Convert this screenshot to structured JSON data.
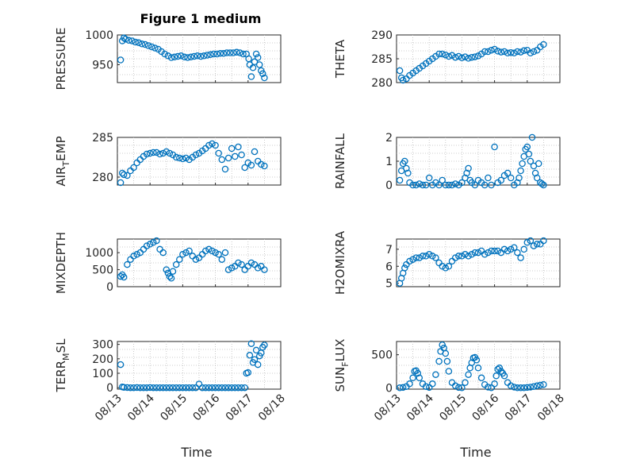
{
  "figure": {
    "title": "Figure 1 medium"
  },
  "chart_data": [
    {
      "type": "scatter",
      "ylabel": "PRESSURE",
      "xlabel": "",
      "xlim": [
        0,
        5
      ],
      "ylim": [
        920,
        1000
      ],
      "yticks": [
        950,
        1000
      ],
      "xticks": [
        0,
        1,
        2,
        3,
        4,
        5
      ],
      "xticklabels": [],
      "grid": "on",
      "x": [
        0.1,
        0.15,
        0.2,
        0.25,
        0.35,
        0.45,
        0.55,
        0.65,
        0.75,
        0.85,
        0.95,
        1.05,
        1.15,
        1.25,
        1.35,
        1.45,
        1.55,
        1.65,
        1.75,
        1.85,
        1.95,
        2.05,
        2.15,
        2.25,
        2.35,
        2.45,
        2.55,
        2.65,
        2.75,
        2.85,
        2.95,
        3.05,
        3.15,
        3.25,
        3.35,
        3.45,
        3.55,
        3.65,
        3.75,
        3.85,
        3.95,
        4.02,
        4.05,
        4.1,
        4.15,
        4.2,
        4.25,
        4.3,
        4.35,
        4.4,
        4.45,
        4.5
      ],
      "y": [
        958,
        990,
        995,
        993,
        991,
        990,
        988,
        987,
        985,
        984,
        982,
        980,
        978,
        976,
        972,
        968,
        965,
        962,
        963,
        964,
        965,
        963,
        962,
        963,
        964,
        965,
        964,
        965,
        966,
        967,
        968,
        968,
        969,
        969,
        970,
        970,
        970,
        971,
        970,
        968,
        968,
        960,
        950,
        930,
        945,
        955,
        968,
        962,
        950,
        940,
        935,
        928
      ]
    },
    {
      "type": "scatter",
      "ylabel": "THETA",
      "xlabel": "",
      "xlim": [
        0,
        5
      ],
      "ylim": [
        280,
        290
      ],
      "yticks": [
        280,
        285,
        290
      ],
      "xticks": [
        0,
        1,
        2,
        3,
        4,
        5
      ],
      "xticklabels": [],
      "grid": "on",
      "x": [
        0.1,
        0.15,
        0.2,
        0.3,
        0.4,
        0.5,
        0.6,
        0.7,
        0.8,
        0.9,
        1.0,
        1.1,
        1.2,
        1.3,
        1.4,
        1.5,
        1.6,
        1.7,
        1.8,
        1.9,
        2.0,
        2.1,
        2.2,
        2.3,
        2.4,
        2.5,
        2.6,
        2.7,
        2.8,
        2.9,
        3.0,
        3.1,
        3.2,
        3.3,
        3.4,
        3.5,
        3.6,
        3.7,
        3.8,
        3.9,
        4.0,
        4.1,
        4.2,
        4.3,
        4.4,
        4.5
      ],
      "y": [
        282.5,
        281,
        280.5,
        280.8,
        281.5,
        282,
        282.5,
        283,
        283.5,
        284,
        284.5,
        285,
        285.5,
        286,
        286,
        285.8,
        285.5,
        285.7,
        285.3,
        285.5,
        285.2,
        285.4,
        285.1,
        285.3,
        285.4,
        285.6,
        286,
        286.5,
        286.5,
        286.8,
        287,
        286.6,
        286.4,
        286.5,
        286.2,
        286.3,
        286.2,
        286.5,
        286.4,
        286.7,
        286.8,
        286.2,
        286.5,
        286.8,
        287.5,
        288
      ]
    },
    {
      "type": "scatter",
      "ylabel": "AIR_TEMP",
      "xlabel": "",
      "xlim": [
        0,
        5
      ],
      "ylim": [
        279,
        285
      ],
      "yticks": [
        280,
        285
      ],
      "xticks": [
        0,
        1,
        2,
        3,
        4,
        5
      ],
      "xticklabels": [],
      "grid": "on",
      "x": [
        0.1,
        0.15,
        0.2,
        0.3,
        0.4,
        0.5,
        0.6,
        0.7,
        0.8,
        0.9,
        1.0,
        1.1,
        1.2,
        1.3,
        1.4,
        1.5,
        1.6,
        1.7,
        1.8,
        1.9,
        2.0,
        2.1,
        2.2,
        2.3,
        2.4,
        2.5,
        2.6,
        2.7,
        2.8,
        2.9,
        3.0,
        3.1,
        3.2,
        3.3,
        3.4,
        3.5,
        3.6,
        3.7,
        3.8,
        3.9,
        4.0,
        4.1,
        4.2,
        4.3,
        4.4,
        4.5
      ],
      "y": [
        279.3,
        280.5,
        280.3,
        280.2,
        280.8,
        281.2,
        281.8,
        282.2,
        282.6,
        282.9,
        283,
        283.1,
        283.1,
        282.9,
        283,
        283.2,
        283,
        282.8,
        282.5,
        282.4,
        282.3,
        282.4,
        282.2,
        282.5,
        282.8,
        283,
        283.3,
        283.6,
        284,
        284.2,
        284,
        283,
        282.2,
        281,
        282.4,
        283.6,
        282.6,
        283.8,
        282.8,
        281.2,
        281.8,
        281.5,
        283.2,
        282,
        281.6,
        281.4
      ]
    },
    {
      "type": "scatter",
      "ylabel": "RAINFALL",
      "xlabel": "",
      "xlim": [
        0,
        5
      ],
      "ylim": [
        0,
        2
      ],
      "yticks": [
        0,
        1,
        2
      ],
      "xticks": [
        0,
        1,
        2,
        3,
        4,
        5
      ],
      "xticklabels": [],
      "grid": "on",
      "x": [
        0.1,
        0.15,
        0.2,
        0.25,
        0.3,
        0.35,
        0.4,
        0.5,
        0.6,
        0.7,
        0.8,
        0.9,
        1.0,
        1.1,
        1.2,
        1.3,
        1.4,
        1.5,
        1.6,
        1.7,
        1.8,
        1.9,
        2.0,
        2.1,
        2.15,
        2.2,
        2.25,
        2.3,
        2.4,
        2.5,
        2.6,
        2.7,
        2.8,
        2.9,
        3.0,
        3.1,
        3.2,
        3.3,
        3.4,
        3.5,
        3.6,
        3.7,
        3.75,
        3.8,
        3.85,
        3.9,
        3.95,
        4.0,
        4.05,
        4.1,
        4.15,
        4.2,
        4.25,
        4.3,
        4.35,
        4.4,
        4.45,
        4.5
      ],
      "y": [
        0.2,
        0.6,
        0.9,
        1.0,
        0.7,
        0.5,
        0.1,
        0,
        0,
        0.05,
        0,
        0,
        0.3,
        0,
        0.1,
        0,
        0.2,
        0,
        0,
        0,
        0.05,
        0,
        0.1,
        0.3,
        0.5,
        0.7,
        0.2,
        0.1,
        0,
        0.2,
        0.1,
        0,
        0.3,
        0,
        1.6,
        0.1,
        0.2,
        0.4,
        0.5,
        0.3,
        0,
        0.1,
        0.3,
        0.6,
        0.9,
        1.2,
        1.5,
        1.6,
        1.3,
        1.0,
        2.0,
        0.8,
        0.5,
        0.3,
        0.9,
        0.1,
        0.05,
        0
      ]
    },
    {
      "type": "scatter",
      "ylabel": "MIXDEPTH",
      "xlabel": "",
      "xlim": [
        0,
        5
      ],
      "ylim": [
        0,
        1400
      ],
      "yticks": [
        0,
        500,
        1000
      ],
      "xticks": [
        0,
        1,
        2,
        3,
        4,
        5
      ],
      "xticklabels": [],
      "grid": "on",
      "x": [
        0.1,
        0.15,
        0.2,
        0.3,
        0.4,
        0.5,
        0.6,
        0.7,
        0.8,
        0.9,
        1.0,
        1.1,
        1.2,
        1.3,
        1.4,
        1.5,
        1.55,
        1.6,
        1.65,
        1.7,
        1.8,
        1.9,
        2.0,
        2.1,
        2.2,
        2.3,
        2.4,
        2.5,
        2.6,
        2.7,
        2.8,
        2.9,
        3.0,
        3.1,
        3.2,
        3.3,
        3.4,
        3.5,
        3.6,
        3.7,
        3.8,
        3.9,
        4.0,
        4.1,
        4.2,
        4.3,
        4.4,
        4.5
      ],
      "y": [
        300,
        350,
        280,
        650,
        800,
        900,
        950,
        1000,
        1100,
        1200,
        1250,
        1300,
        1350,
        1100,
        1000,
        500,
        400,
        300,
        250,
        450,
        650,
        800,
        950,
        1000,
        1050,
        900,
        800,
        850,
        950,
        1050,
        1100,
        1050,
        1000,
        950,
        800,
        1000,
        500,
        550,
        600,
        700,
        650,
        500,
        600,
        700,
        650,
        550,
        600,
        500
      ]
    },
    {
      "type": "scatter",
      "ylabel": "H2OMIXRA",
      "xlabel": "",
      "xlim": [
        0,
        5
      ],
      "ylim": [
        4.8,
        7.6
      ],
      "yticks": [
        5,
        6,
        7
      ],
      "xticks": [
        0,
        1,
        2,
        3,
        4,
        5
      ],
      "xticklabels": [],
      "grid": "on",
      "x": [
        0.1,
        0.15,
        0.2,
        0.25,
        0.3,
        0.4,
        0.5,
        0.6,
        0.7,
        0.8,
        0.9,
        1.0,
        1.1,
        1.2,
        1.3,
        1.4,
        1.5,
        1.6,
        1.7,
        1.8,
        1.9,
        2.0,
        2.1,
        2.2,
        2.3,
        2.4,
        2.5,
        2.6,
        2.7,
        2.8,
        2.9,
        3.0,
        3.1,
        3.2,
        3.3,
        3.4,
        3.5,
        3.6,
        3.7,
        3.8,
        3.9,
        4.0,
        4.1,
        4.2,
        4.3,
        4.4,
        4.5
      ],
      "y": [
        5.0,
        5.3,
        5.6,
        5.9,
        6.1,
        6.3,
        6.4,
        6.5,
        6.5,
        6.6,
        6.6,
        6.7,
        6.6,
        6.5,
        6.2,
        6.0,
        5.9,
        6.0,
        6.3,
        6.5,
        6.6,
        6.6,
        6.7,
        6.6,
        6.7,
        6.8,
        6.8,
        6.9,
        6.7,
        6.8,
        6.9,
        6.9,
        6.9,
        6.8,
        7.0,
        6.9,
        7.0,
        7.1,
        6.8,
        6.5,
        7.0,
        7.4,
        7.5,
        7.2,
        7.3,
        7.3,
        7.5
      ]
    },
    {
      "type": "scatter",
      "ylabel": "TERR_MSL",
      "xlabel": "Time",
      "xlim": [
        0,
        5
      ],
      "ylim": [
        -10,
        320
      ],
      "yticks": [
        0,
        100,
        200,
        300
      ],
      "xticks": [
        0,
        1,
        2,
        3,
        4,
        5
      ],
      "xticklabels": [
        "08/13",
        "08/14",
        "08/15",
        "08/16",
        "08/17",
        "08/18"
      ],
      "grid": "on",
      "x": [
        0.1,
        0.15,
        0.2,
        0.3,
        0.4,
        0.5,
        0.6,
        0.7,
        0.8,
        0.9,
        1.0,
        1.1,
        1.2,
        1.3,
        1.4,
        1.5,
        1.6,
        1.7,
        1.8,
        1.9,
        2.0,
        2.1,
        2.2,
        2.3,
        2.4,
        2.5,
        2.6,
        2.7,
        2.8,
        2.9,
        3.0,
        3.1,
        3.2,
        3.3,
        3.4,
        3.5,
        3.6,
        3.7,
        3.8,
        3.9,
        3.95,
        4.0,
        4.05,
        4.1,
        4.15,
        4.2,
        4.25,
        4.3,
        4.35,
        4.4,
        4.45,
        4.5
      ],
      "y": [
        160,
        5,
        2,
        1,
        0,
        0,
        1,
        0,
        0,
        0,
        1,
        0,
        0,
        0,
        0,
        0,
        0,
        0,
        0,
        0,
        0,
        0,
        0,
        0,
        0,
        25,
        0,
        0,
        0,
        0,
        0,
        0,
        0,
        0,
        0,
        0,
        0,
        0,
        0,
        0,
        100,
        105,
        225,
        305,
        175,
        195,
        260,
        160,
        220,
        240,
        280,
        295
      ]
    },
    {
      "type": "scatter",
      "ylabel": "SUN_FLUX",
      "xlabel": "Time",
      "xlim": [
        0,
        5
      ],
      "ylim": [
        -20,
        700
      ],
      "yticks": [
        0,
        500
      ],
      "xticks": [
        0,
        1,
        2,
        3,
        4,
        5
      ],
      "xticklabels": [
        "08/13",
        "08/14",
        "08/15",
        "08/16",
        "08/17",
        "08/18"
      ],
      "grid": "on",
      "x": [
        0.1,
        0.2,
        0.3,
        0.4,
        0.5,
        0.55,
        0.6,
        0.65,
        0.7,
        0.8,
        0.9,
        1.0,
        1.1,
        1.2,
        1.3,
        1.35,
        1.4,
        1.45,
        1.5,
        1.55,
        1.6,
        1.7,
        1.8,
        1.9,
        2.0,
        2.1,
        2.2,
        2.25,
        2.3,
        2.35,
        2.4,
        2.45,
        2.5,
        2.6,
        2.7,
        2.8,
        2.9,
        3.0,
        3.05,
        3.1,
        3.15,
        3.2,
        3.25,
        3.3,
        3.4,
        3.5,
        3.6,
        3.7,
        3.8,
        3.9,
        4.0,
        4.1,
        4.2,
        4.3,
        4.4,
        4.5
      ],
      "y": [
        0,
        5,
        20,
        60,
        150,
        250,
        260,
        220,
        150,
        60,
        20,
        5,
        60,
        200,
        400,
        550,
        650,
        600,
        520,
        400,
        250,
        80,
        30,
        5,
        0,
        80,
        200,
        300,
        380,
        450,
        460,
        420,
        300,
        150,
        50,
        10,
        0,
        60,
        180,
        280,
        300,
        250,
        220,
        180,
        80,
        30,
        10,
        0,
        0,
        0,
        5,
        10,
        20,
        30,
        40,
        50
      ]
    }
  ]
}
